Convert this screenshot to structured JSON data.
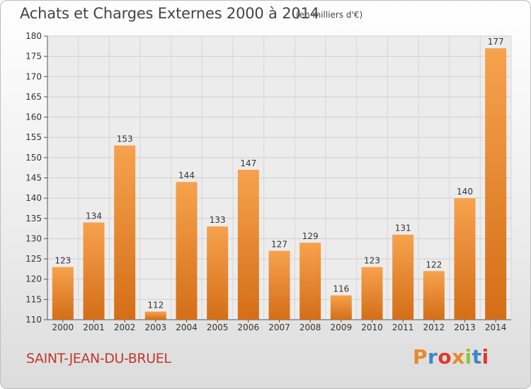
{
  "chart_data": {
    "type": "bar",
    "title": "Achats et Charges Externes 2000 à 2014",
    "subtitle": "(en milliers d'€)",
    "categories": [
      "2000",
      "2001",
      "2002",
      "2003",
      "2004",
      "2005",
      "2006",
      "2007",
      "2008",
      "2009",
      "2010",
      "2011",
      "2012",
      "2013",
      "2014"
    ],
    "values": [
      123,
      134,
      153,
      112,
      144,
      133,
      147,
      127,
      129,
      116,
      123,
      131,
      122,
      140,
      177
    ],
    "ylim": [
      110,
      180
    ],
    "yticks": [
      110,
      115,
      120,
      125,
      130,
      135,
      140,
      145,
      150,
      155,
      160,
      165,
      170,
      175,
      180
    ],
    "grid": true,
    "bar_color": "#f0963f"
  },
  "footer": {
    "place_name": "SAINT-JEAN-DU-BRUEL",
    "logo_text": "Proxiti",
    "logo_colors": [
      "#e8892b",
      "#3b86c9",
      "#e0392b",
      "#e8892b",
      "#8cc43e",
      "#3b86c9",
      "#e0392b"
    ]
  }
}
